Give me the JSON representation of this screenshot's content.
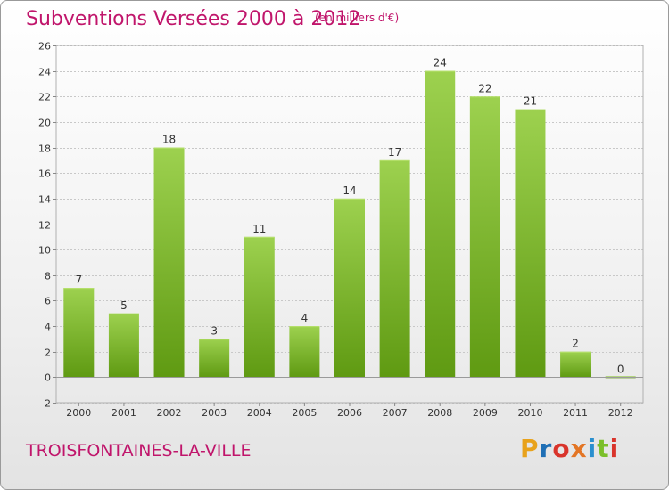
{
  "header": {
    "title": "Subventions Versées 2000 à 2012",
    "subtitle": "(en milliers d'€)"
  },
  "footer": {
    "commune": "TROISFONTAINES-LA-VILLE",
    "logo_text": "Proxiti",
    "logo_colors": [
      "#e8a21b",
      "#1f6fb5",
      "#d9342b",
      "#e37524",
      "#2a8fce",
      "#7bbf2a",
      "#d9342b"
    ]
  },
  "colors": {
    "title": "#c0156b",
    "bar_top": "#9dd14f",
    "bar_bottom": "#5f9a12",
    "grid": "#c8c8c8",
    "axis_text": "#333333"
  },
  "chart_data": {
    "type": "bar",
    "categories": [
      "2000",
      "2001",
      "2002",
      "2003",
      "2004",
      "2005",
      "2006",
      "2007",
      "2008",
      "2009",
      "2010",
      "2011",
      "2012"
    ],
    "values": [
      7,
      5,
      18,
      3,
      11,
      4,
      14,
      17,
      24,
      22,
      21,
      2,
      0
    ],
    "data_labels": [
      "7",
      "5",
      "18",
      "3",
      "11",
      "4",
      "14",
      "17",
      "24",
      "22",
      "21",
      "2",
      "0"
    ],
    "ylim": [
      -2,
      26
    ],
    "yticks": [
      -2,
      0,
      2,
      4,
      6,
      8,
      10,
      12,
      14,
      16,
      18,
      20,
      22,
      24,
      26
    ],
    "grid": true,
    "xlabel": "",
    "ylabel": ""
  }
}
